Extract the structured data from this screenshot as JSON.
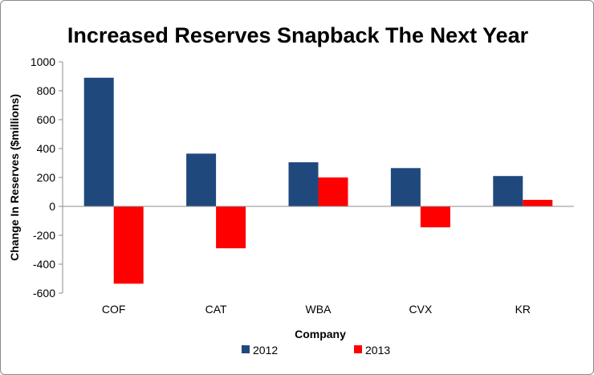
{
  "chart_data": {
    "type": "bar",
    "title": "Increased Reserves Snapback The Next Year",
    "xlabel": "Company",
    "ylabel": "Change In Reserves ($millions)",
    "categories": [
      "COF",
      "CAT",
      "WBA",
      "CVX",
      "KR"
    ],
    "series": [
      {
        "name": "2012",
        "color": "#1f497d",
        "values": [
          890,
          365,
          305,
          265,
          210
        ]
      },
      {
        "name": "2013",
        "color": "#ff0000",
        "values": [
          -535,
          -290,
          200,
          -145,
          45
        ]
      }
    ],
    "ylim": [
      -600,
      1000
    ],
    "yticks": [
      "1000",
      "800",
      "600",
      "400",
      "200",
      "0",
      "-200",
      "-400",
      "-600"
    ],
    "grid": false,
    "legend_position": "bottom"
  }
}
